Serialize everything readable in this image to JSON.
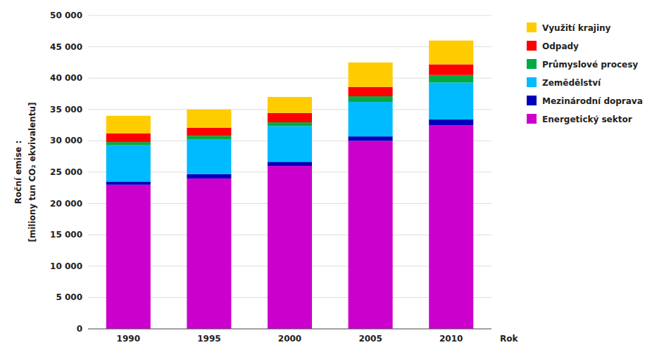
{
  "chart_data": {
    "type": "bar",
    "stacked": true,
    "categories": [
      "1990",
      "1995",
      "2000",
      "2005",
      "2010"
    ],
    "series": [
      {
        "name": "Energetický sektor",
        "color": "#CC00CC",
        "values": [
          23000,
          24000,
          26000,
          30000,
          32500
        ]
      },
      {
        "name": "Mezinárodní doprava",
        "color": "#0000BB",
        "values": [
          500,
          700,
          650,
          700,
          900
        ]
      },
      {
        "name": "Zemědělství",
        "color": "#00BBFF",
        "values": [
          5800,
          5500,
          5700,
          5500,
          5900
        ]
      },
      {
        "name": "Průmyslové procesy",
        "color": "#00AA44",
        "values": [
          500,
          600,
          600,
          900,
          1200
        ]
      },
      {
        "name": "Odpady",
        "color": "#FF0000",
        "values": [
          1400,
          1300,
          1500,
          1500,
          1700
        ]
      },
      {
        "name": "Využití krajiny",
        "color": "#FFCC00",
        "values": [
          2800,
          2900,
          2550,
          3900,
          3800
        ]
      }
    ],
    "y_label": "Roční emise :\n[miliony tun CO₂ ekvivalentu]",
    "x_label": "Rok",
    "ylim": [
      0,
      50000
    ],
    "yticks": [
      0,
      {
        "value": 5000,
        "label": "5 000"
      },
      {
        "value": 10000,
        "label": "10 000"
      },
      {
        "value": 15000,
        "label": "15 000"
      },
      {
        "value": 20000,
        "label": "20 000"
      },
      {
        "value": 25000,
        "label": "25 000"
      },
      {
        "value": 30000,
        "label": "30 000"
      },
      {
        "value": 35000,
        "label": "35 000"
      },
      {
        "value": 40000,
        "label": "40 000"
      },
      {
        "value": 45000,
        "label": "45 000"
      },
      {
        "value": 50000,
        "label": "50 000"
      }
    ],
    "grid": true,
    "legend": "right"
  }
}
